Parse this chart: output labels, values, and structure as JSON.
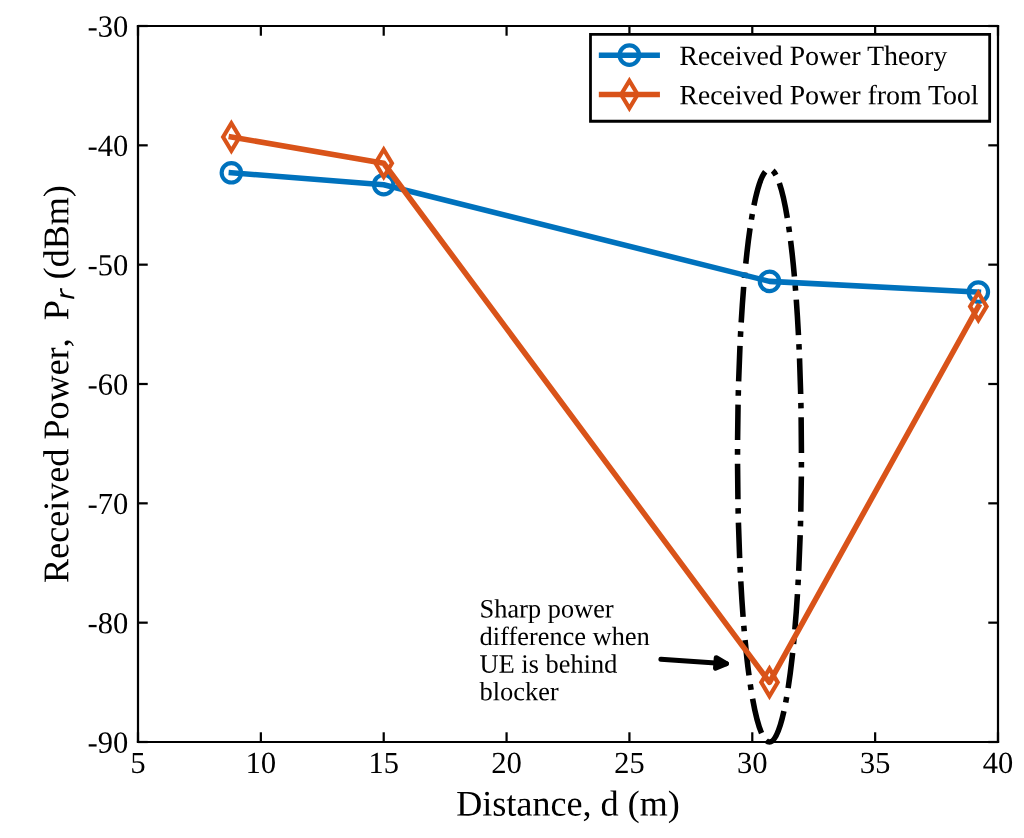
{
  "chart_data": {
    "type": "line",
    "xlabel": "Distance, d (m)",
    "ylabel": "Received Power,  P$_{r}$ (dBm)",
    "xlim": [
      5,
      40
    ],
    "xticks": [
      5,
      10,
      15,
      20,
      25,
      30,
      35,
      40
    ],
    "ylim": [
      -90,
      -30
    ],
    "yticks": [
      -90,
      -80,
      -70,
      -60,
      -50,
      -40,
      -30
    ],
    "grid": false,
    "legend": "top right",
    "series": [
      {
        "name": "Received Power Theory",
        "color": "#0072bd",
        "marker": "circle",
        "x": [
          8.8,
          15,
          30.7,
          39.2
        ],
        "values": [
          -42.3,
          -43.3,
          -51.4,
          -52.3
        ]
      },
      {
        "name": "Received Power from Tool",
        "color": "#d95319",
        "marker": "diamond",
        "x": [
          8.8,
          15,
          30.7,
          39.2
        ],
        "values": [
          -39.3,
          -41.5,
          -85.0,
          -53.5
        ]
      }
    ],
    "annotations": [
      "Sharp power\ndifference when\nUE is behind\nblocker"
    ]
  }
}
